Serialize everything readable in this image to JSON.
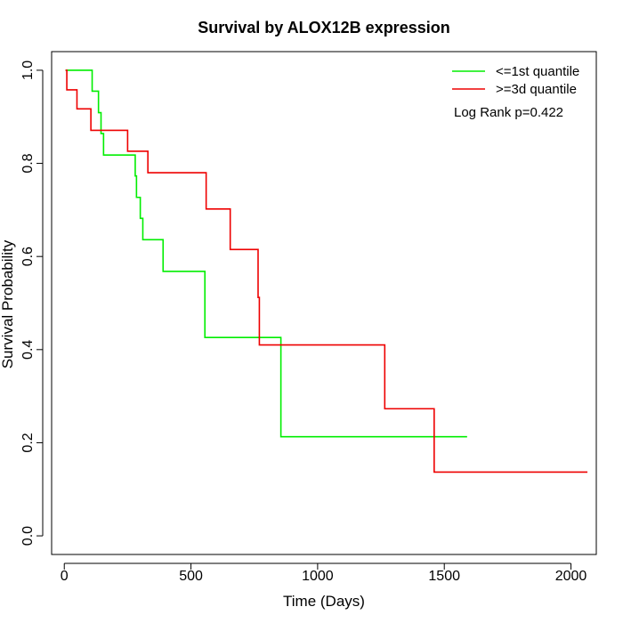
{
  "chart_data": {
    "type": "line",
    "subtype": "kaplan-meier step",
    "title": "Survival by ALOX12B expression",
    "xlabel": "Time (Days)",
    "ylabel": "Survival Probability",
    "xlim": [
      -50,
      2100
    ],
    "ylim": [
      -0.04,
      1.04
    ],
    "x_ticks": [
      0,
      500,
      1000,
      1500,
      2000
    ],
    "y_ticks": [
      0.0,
      0.2,
      0.4,
      0.6,
      0.8,
      1.0
    ],
    "x_tick_labels": [
      "0",
      "500",
      "1000",
      "1500",
      "2000"
    ],
    "y_tick_labels": [
      "0.0",
      "0.2",
      "0.4",
      "0.6",
      "0.8",
      "1.0"
    ],
    "grid": false,
    "legend_position": "top-right",
    "annotation": "Log Rank p=0.422",
    "series": [
      {
        "name": "<=1st quantile",
        "color": "#00ee00",
        "x": [
          5,
          110,
          135,
          145,
          155,
          280,
          285,
          300,
          310,
          325,
          390,
          555,
          855,
          1590
        ],
        "y": [
          1.0,
          0.955,
          0.909,
          0.864,
          0.818,
          0.773,
          0.727,
          0.682,
          0.636,
          0.636,
          0.568,
          0.426,
          0.213,
          0.213
        ]
      },
      {
        "name": ">=3d quantile",
        "color": "#ee0000",
        "x": [
          5,
          10,
          50,
          105,
          250,
          330,
          560,
          655,
          765,
          770,
          1265,
          1460,
          2065
        ],
        "y": [
          1.0,
          0.958,
          0.917,
          0.871,
          0.826,
          0.78,
          0.702,
          0.615,
          0.512,
          0.41,
          0.273,
          0.137,
          0.137
        ]
      }
    ]
  }
}
